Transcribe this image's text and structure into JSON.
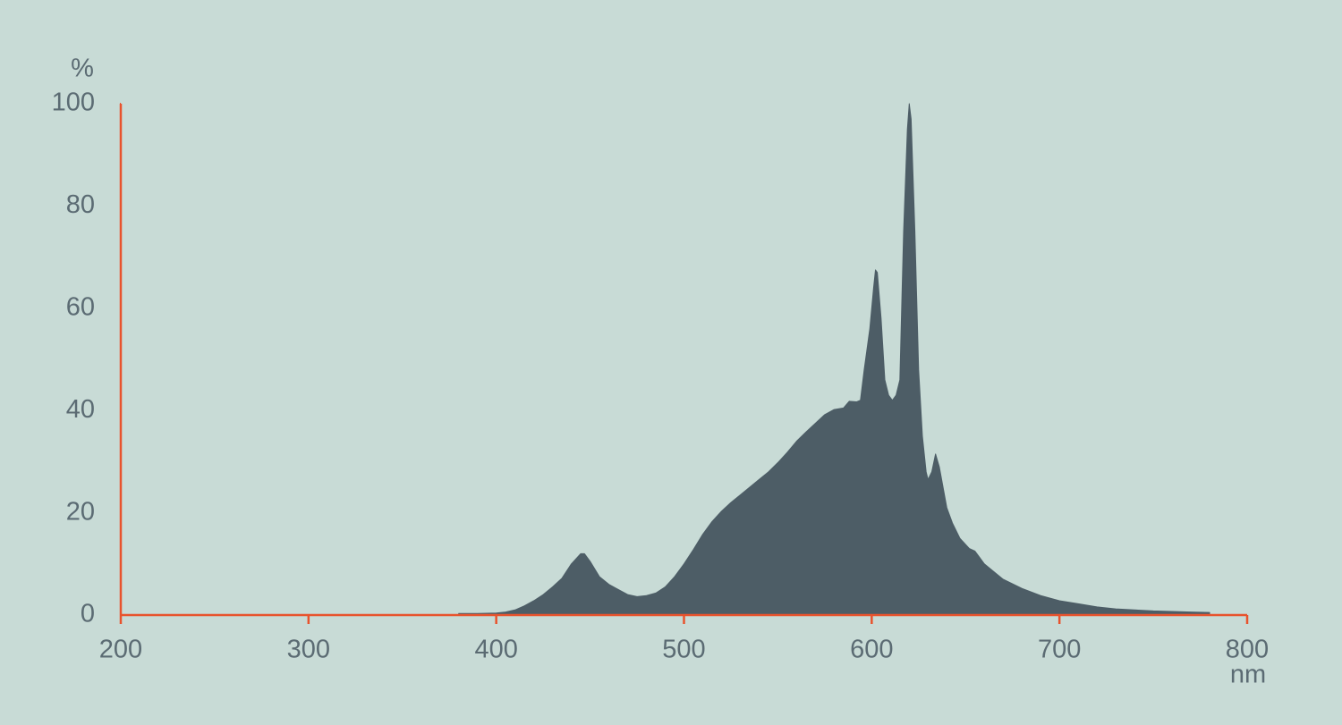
{
  "chart_data": {
    "type": "area",
    "y_label": "%",
    "x_label": "nm",
    "color": "#4d5d66",
    "axis_color": "#e8532d",
    "xlim": [
      200,
      800
    ],
    "ylim": [
      0,
      100
    ],
    "xticks": [
      200,
      300,
      400,
      500,
      600,
      700,
      800
    ],
    "yticks": [
      0,
      20,
      40,
      60,
      80,
      100
    ],
    "x": [
      380,
      390,
      400,
      405,
      410,
      415,
      420,
      425,
      430,
      435,
      440,
      445,
      447,
      450,
      455,
      460,
      465,
      470,
      475,
      480,
      485,
      490,
      495,
      500,
      505,
      510,
      515,
      520,
      525,
      530,
      535,
      540,
      545,
      550,
      555,
      560,
      565,
      570,
      575,
      580,
      585,
      588,
      592,
      594,
      596,
      599,
      601,
      602,
      603,
      605,
      607,
      609,
      611,
      613,
      615,
      617,
      619,
      620,
      621,
      623,
      625,
      627,
      629,
      630,
      632,
      634,
      636,
      638,
      640,
      643,
      647,
      652,
      655,
      657,
      660,
      670,
      680,
      690,
      700,
      710,
      720,
      730,
      740,
      750,
      760,
      770,
      780
    ],
    "values": [
      0.3,
      0.3,
      0.4,
      0.6,
      1,
      1.8,
      2.8,
      4,
      5.5,
      7.2,
      10,
      12,
      12,
      10.5,
      7.5,
      6,
      5,
      4,
      3.6,
      3.8,
      4.3,
      5.5,
      7.5,
      10,
      12.8,
      15.8,
      18.3,
      20.3,
      22,
      23.5,
      25,
      26.5,
      28,
      29.8,
      31.8,
      34,
      35.8,
      37.5,
      39.2,
      40.2,
      40.5,
      41.8,
      41.7,
      42,
      48,
      56,
      64,
      67.5,
      67,
      58,
      46,
      43,
      42,
      43,
      46,
      75,
      95,
      100,
      97,
      75,
      48,
      35,
      28,
      26.5,
      28,
      31.5,
      29,
      25,
      21,
      18,
      15,
      13,
      12.5,
      11.5,
      10,
      7,
      5.2,
      3.8,
      2.8,
      2.2,
      1.6,
      1.2,
      1.0,
      0.8,
      0.7,
      0.6,
      0.5
    ]
  }
}
